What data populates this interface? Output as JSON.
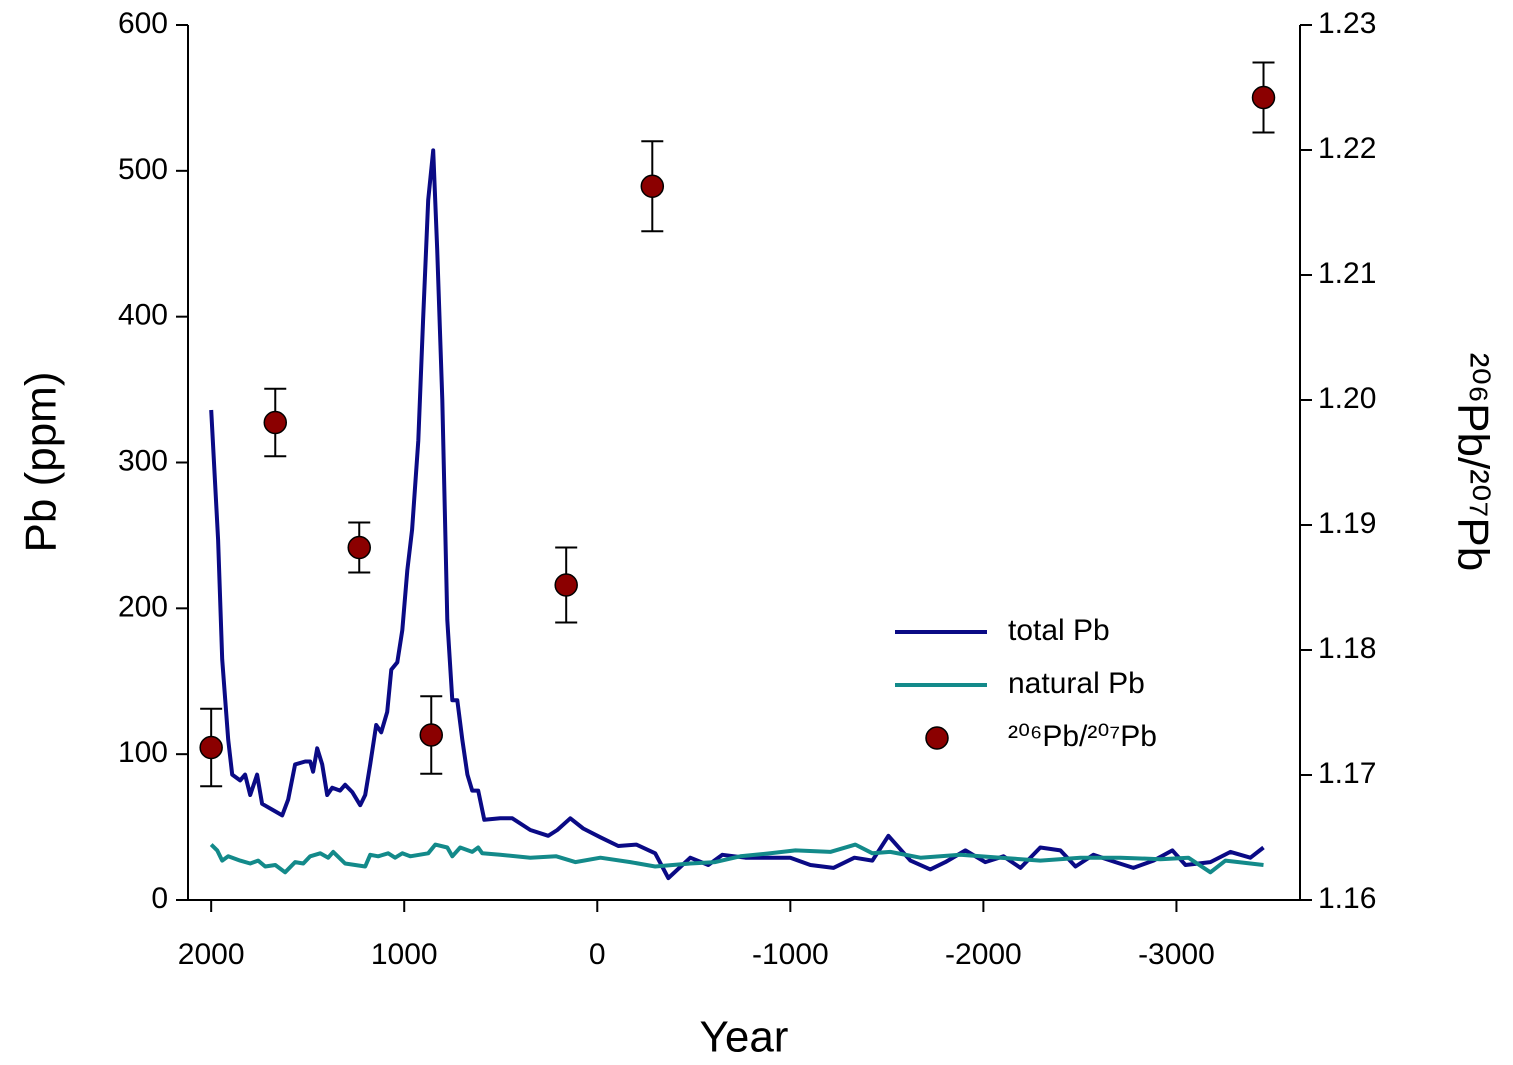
{
  "chart_data": {
    "type": "line",
    "xlabel": "Year",
    "ylabel": "Pb (ppm)",
    "y2label": "²⁰⁶Pb/²⁰⁷Pb",
    "xlim": [
      2120,
      -3640
    ],
    "xticks": [
      2000,
      1000,
      0,
      -1000,
      -2000,
      -3000
    ],
    "ylim": [
      0,
      600
    ],
    "yticks": [
      0,
      100,
      200,
      300,
      400,
      500,
      600
    ],
    "y2lim": [
      1.16,
      1.23
    ],
    "y2ticks": [
      {
        "value": 1.16,
        "label": "1.16"
      },
      1.17,
      1.18,
      1.19,
      {
        "value": 1.2,
        "label": "1.20"
      },
      1.21,
      1.22,
      1.23
    ],
    "legend": "center right",
    "series": [
      {
        "name": "total Pb",
        "type": "line",
        "color": "#0a0a85",
        "x": [
          2000,
          1964,
          1943,
          1912,
          1891,
          1850,
          1824,
          1798,
          1762,
          1736,
          1684,
          1632,
          1601,
          1565,
          1513,
          1487,
          1472,
          1451,
          1425,
          1399,
          1373,
          1332,
          1306,
          1269,
          1228,
          1202,
          1176,
          1145,
          1119,
          1088,
          1067,
          1036,
          1010,
          984,
          959,
          927,
          902,
          876,
          850,
          829,
          803,
          777,
          751,
          725,
          699,
          673,
          648,
          617,
          585,
          503,
          440,
          347,
          254,
          207,
          140,
          73,
          -16,
          -109,
          -202,
          -300,
          -368,
          -482,
          -575,
          -648,
          -767,
          -1000,
          -1104,
          -1223,
          -1332,
          -1425,
          -1508,
          -1622,
          -1725,
          -1803,
          -1907,
          -2010,
          -2104,
          -2192,
          -2295,
          -2399,
          -2477,
          -2570,
          -2684,
          -2777,
          -2881,
          -2979,
          -3047,
          -3176,
          -3280,
          -3383,
          -3451
        ],
        "values": [
          336,
          247,
          165,
          110,
          86,
          82,
          86,
          72,
          86,
          66,
          62,
          58,
          69,
          93,
          95,
          95,
          88,
          104,
          93,
          72,
          77,
          75,
          79,
          74,
          65,
          72,
          93,
          120,
          115,
          129,
          158,
          163,
          185,
          226,
          254,
          315,
          398,
          480,
          514,
          446,
          343,
          192,
          137,
          137,
          110,
          86,
          75,
          75,
          55,
          56,
          56,
          48,
          44,
          48,
          56,
          49,
          43,
          37,
          38,
          32,
          15,
          29,
          24,
          31,
          29,
          29,
          24,
          22,
          29,
          27,
          44,
          27,
          21,
          26,
          34,
          26,
          30,
          22,
          36,
          34,
          23,
          31,
          26,
          22,
          27,
          34,
          24,
          26,
          33,
          29,
          36
        ]
      },
      {
        "name": "natural Pb",
        "type": "line",
        "color": "#138a8a",
        "x": [
          2000,
          1969,
          1943,
          1912,
          1850,
          1798,
          1757,
          1720,
          1668,
          1617,
          1565,
          1523,
          1487,
          1435,
          1394,
          1368,
          1306,
          1202,
          1176,
          1135,
          1083,
          1047,
          1010,
          969,
          876,
          839,
          777,
          751,
          710,
          648,
          617,
          596,
          503,
          347,
          212,
          114,
          -16,
          -171,
          -300,
          -482,
          -611,
          -741,
          -896,
          -1026,
          -1207,
          -1337,
          -1425,
          -1518,
          -1674,
          -1881,
          -2088,
          -2295,
          -2503,
          -2710,
          -2917,
          -3062,
          -3176,
          -3254,
          -3451
        ],
        "values": [
          38,
          34,
          27,
          30,
          27,
          25,
          27,
          23,
          24,
          19,
          26,
          25,
          30,
          32,
          29,
          33,
          25,
          23,
          31,
          30,
          32,
          29,
          32,
          30,
          32,
          38,
          36,
          30,
          36,
          33,
          36,
          32,
          31,
          29,
          30,
          26,
          29,
          26,
          23,
          25,
          26,
          30,
          32,
          34,
          33,
          38,
          32,
          33,
          29,
          31,
          29,
          27,
          29,
          29,
          28,
          29,
          19,
          27,
          24
        ]
      },
      {
        "name": "²⁰⁶Pb/²⁰⁷Pb",
        "type": "scatter",
        "axis": "y2",
        "color": "#8b0000",
        "x": [
          2000,
          1668,
          1233,
          860,
          161,
          -285,
          -3451
        ],
        "values": [
          1.1722,
          1.1982,
          1.1882,
          1.1732,
          1.1852,
          1.2171,
          1.2242
        ],
        "errors": [
          0.0031,
          0.0027,
          0.002,
          0.0031,
          0.003,
          0.0036,
          0.0028
        ]
      }
    ]
  }
}
